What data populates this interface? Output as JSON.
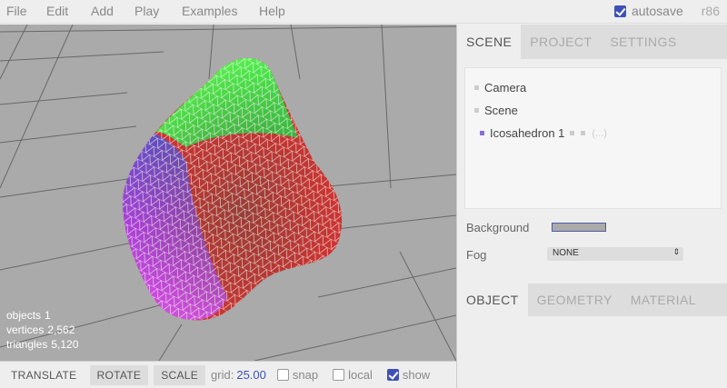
{
  "menubar": {
    "items": [
      "File",
      "Edit",
      "Add",
      "Play",
      "Examples",
      "Help"
    ],
    "autosave_label": "autosave",
    "autosave_checked": true,
    "version": "r86"
  },
  "viewport": {
    "info": {
      "objects_label": "objects",
      "objects_value": "1",
      "vertices_label": "vertices",
      "vertices_value": "2,562",
      "triangles_label": "triangles",
      "triangles_value": "5,120"
    }
  },
  "toolbar": {
    "translate": "TRANSLATE",
    "rotate": "ROTATE",
    "scale": "SCALE",
    "grid_label": "grid:",
    "grid_value": "25.00",
    "snap_label": "snap",
    "snap_checked": false,
    "local_label": "local",
    "local_checked": false,
    "show_label": "show",
    "show_checked": true
  },
  "sidebar": {
    "tabs": [
      "SCENE",
      "PROJECT",
      "SETTINGS"
    ],
    "active_tab": "SCENE",
    "outliner": [
      "Camera",
      "Scene",
      "Icosahedron 1"
    ],
    "outliner_extra": "(...)",
    "background_label": "Background",
    "background_color": "#aaaaaa",
    "fog_label": "Fog",
    "fog_value": "NONE",
    "tabs2": [
      "OBJECT",
      "GEOMETRY",
      "MATERIAL"
    ],
    "active_tab2": "OBJECT"
  },
  "colors": {
    "accent": "#3f51b5",
    "viewport_bg": "#aaaaaa",
    "mesh_green": "#4cff4c",
    "mesh_red": "#e03030",
    "mesh_blue": "#5060c0",
    "mesh_magenta": "#d040e0"
  }
}
